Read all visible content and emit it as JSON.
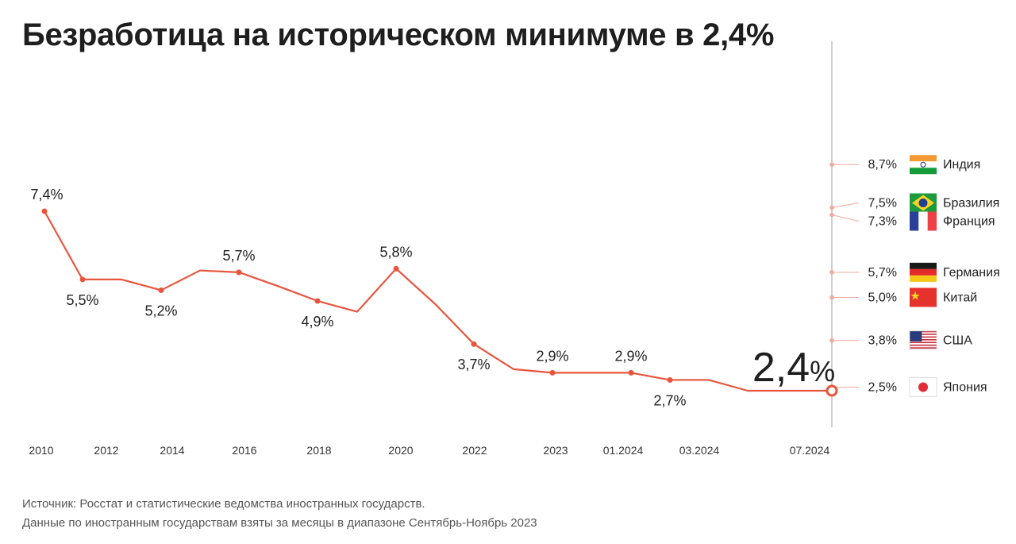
{
  "title": "Безработица на историческом минимуме в 2,4%",
  "chart_data": {
    "type": "line",
    "title": "Безработица на историческом минимуме в 2,4%",
    "series": [
      {
        "points": [
          {
            "x": "2010",
            "y": 7.4,
            "label": "7,4%"
          },
          {
            "x": "2011",
            "y": 5.5,
            "label": "5,5%"
          },
          {
            "x": "2012",
            "y": 5.5,
            "label": ""
          },
          {
            "x": "2014",
            "y": 5.2,
            "label": "5,2%"
          },
          {
            "x": "2015",
            "y": 5.75,
            "label": ""
          },
          {
            "x": "2016",
            "y": 5.7,
            "label": "5,7%"
          },
          {
            "x": "2017",
            "y": 5.3,
            "label": ""
          },
          {
            "x": "2018",
            "y": 4.9,
            "label": "4,9%"
          },
          {
            "x": "2019",
            "y": 4.6,
            "label": ""
          },
          {
            "x": "2020",
            "y": 5.8,
            "label": "5,8%"
          },
          {
            "x": "2021",
            "y": 4.8,
            "label": ""
          },
          {
            "x": "2022",
            "y": 3.7,
            "label": "3,7%"
          },
          {
            "x": "2022.5",
            "y": 3.0,
            "label": ""
          },
          {
            "x": "2023",
            "y": 2.9,
            "label": "2,9%"
          },
          {
            "x": "2023.5",
            "y": 2.9,
            "label": ""
          },
          {
            "x": "01.2024",
            "y": 2.9,
            "label": "2,9%"
          },
          {
            "x": "02.2024",
            "y": 2.7,
            "label": "2,7%"
          },
          {
            "x": "03.2024",
            "y": 2.7,
            "label": ""
          },
          {
            "x": "05.2024",
            "y": 2.4,
            "label": ""
          },
          {
            "x": "07.2024",
            "y": 2.4,
            "label": ""
          }
        ]
      }
    ],
    "x_tick_labels": [
      "2010",
      "2012",
      "2014",
      "2016",
      "2018",
      "2020",
      "2022",
      "2023",
      "01.2024",
      "03.2024",
      "07.2024"
    ],
    "highlight": {
      "label": "2,4",
      "unit": "%"
    },
    "comparison": [
      {
        "value": 8.7,
        "label": "8,7%",
        "country": "Индия",
        "flag": "india-flag"
      },
      {
        "value": 7.5,
        "label": "7,5%",
        "country": "Бразилия",
        "flag": "brazil-flag"
      },
      {
        "value": 7.3,
        "label": "7,3%",
        "country": "Франция",
        "flag": "france-flag"
      },
      {
        "value": 5.7,
        "label": "5,7%",
        "country": "Германия",
        "flag": "germany-flag"
      },
      {
        "value": 5.0,
        "label": "5,0%",
        "country": "Китай",
        "flag": "china-flag"
      },
      {
        "value": 3.8,
        "label": "3,8%",
        "country": "США",
        "flag": "usa-flag"
      },
      {
        "value": 2.5,
        "label": "2,5%",
        "country": "Япония",
        "flag": "japan-flag"
      }
    ],
    "colors": {
      "line": "#e8553d",
      "axis": "#cfcfcf",
      "text": "#222222"
    }
  },
  "footnotes": [
    "Источник: Росстат и статистические ведомства иностранных государств.",
    "Данные по иностранным государствам взяты за месяцы в диапазоне Сентябрь-Ноябрь 2023"
  ]
}
